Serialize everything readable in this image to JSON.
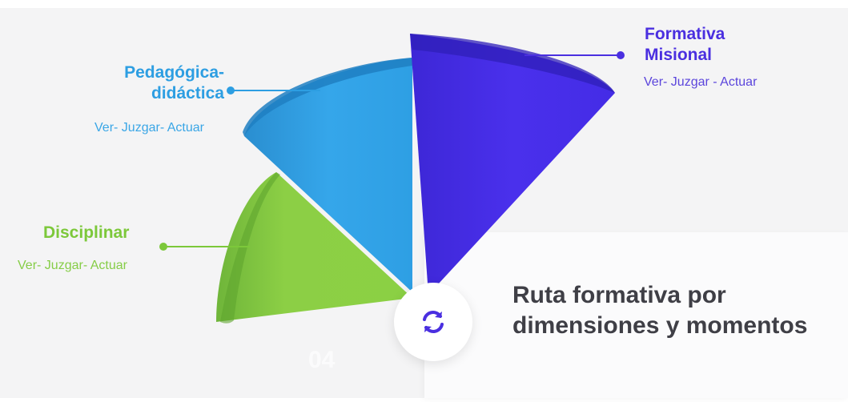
{
  "diagram": {
    "segments": [
      {
        "title_lines": [
          "Formativa",
          "Misional"
        ],
        "subtitle": "Ver- Juzgar - Actuar",
        "color": "#4a2fe0"
      },
      {
        "title_lines": [
          "Pedagógica-",
          "didáctica"
        ],
        "subtitle": "Ver- Juzgar- Actuar",
        "color": "#2d9ee2"
      },
      {
        "title_lines": [
          "Disciplinar"
        ],
        "subtitle": "Ver- Juzgar- Actuar",
        "color": "#7cc83a"
      }
    ],
    "faded_number": "04",
    "center_icon": "refresh-icon"
  },
  "card": {
    "title_lines": [
      "Ruta formativa por",
      "dimensiones y momentos"
    ]
  }
}
